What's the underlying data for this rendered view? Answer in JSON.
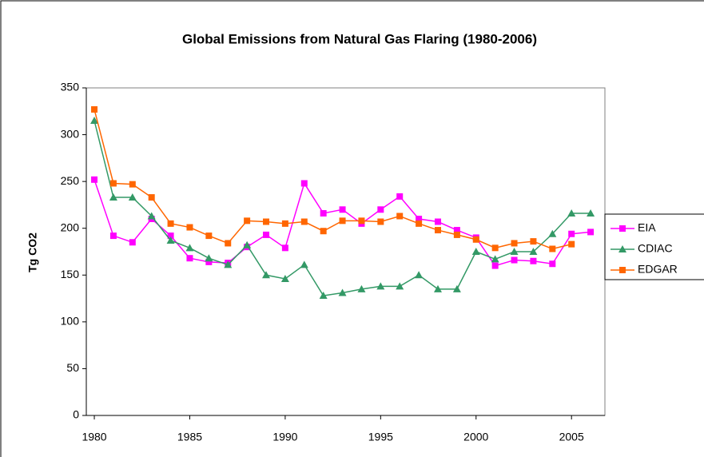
{
  "chart_data": {
    "type": "line",
    "title": "Global Emissions  from Natural Gas Flaring (1980-2006)",
    "ylabel": "Tg CO2",
    "x": [
      1980,
      1981,
      1982,
      1983,
      1984,
      1985,
      1986,
      1987,
      1988,
      1989,
      1990,
      1991,
      1992,
      1993,
      1994,
      1995,
      1996,
      1997,
      1998,
      1999,
      2000,
      2001,
      2002,
      2003,
      2004,
      2005,
      2006
    ],
    "series": [
      {
        "name": "EIA",
        "color": "#ff00ff",
        "marker": "square",
        "values": [
          252,
          192,
          185,
          210,
          192,
          168,
          164,
          163,
          180,
          193,
          179,
          248,
          216,
          220,
          205,
          220,
          234,
          210,
          207,
          198,
          190,
          160,
          166,
          165,
          162,
          194,
          196
        ]
      },
      {
        "name": "CDIAC",
        "color": "#339966",
        "marker": "triangle",
        "values": [
          315,
          233,
          233,
          213,
          187,
          179,
          168,
          161,
          182,
          150,
          146,
          161,
          128,
          131,
          135,
          138,
          138,
          150,
          135,
          135,
          175,
          167,
          175,
          175,
          194,
          216,
          216
        ]
      },
      {
        "name": "EDGAR",
        "color": "#ff6600",
        "marker": "square",
        "values": [
          327,
          248,
          247,
          233,
          205,
          201,
          192,
          184,
          208,
          207,
          205,
          207,
          197,
          208,
          208,
          207,
          213,
          205,
          198,
          193,
          188,
          179,
          184,
          186,
          178,
          183,
          null
        ]
      }
    ],
    "xlim": [
      1979.58,
      2006.75
    ],
    "xticks": [
      1980,
      1985,
      1990,
      1995,
      2000,
      2005
    ],
    "ylim": [
      0,
      350
    ],
    "yticks": [
      0,
      50,
      100,
      150,
      200,
      250,
      300,
      350
    ],
    "legend": "right"
  }
}
